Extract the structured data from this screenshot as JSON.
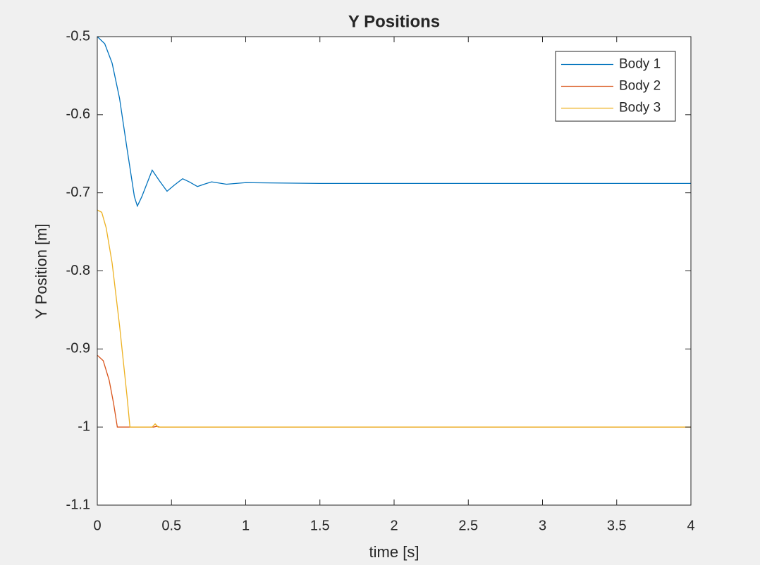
{
  "chart_data": {
    "type": "line",
    "title": "Y Positions",
    "xlabel": "time [s]",
    "ylabel": "Y Position [m]",
    "xlim": [
      0,
      4
    ],
    "xticks": [
      0,
      0.5,
      1,
      1.5,
      2,
      2.5,
      3,
      3.5,
      4
    ],
    "ylim": [
      -1.1,
      -0.5
    ],
    "yticks": [
      -1.1,
      -1,
      -0.9,
      -0.8,
      -0.7,
      -0.6,
      -0.5
    ],
    "legend_location": "northeast",
    "grid": false,
    "series": [
      {
        "name": "Body 1",
        "color": "#0072BD",
        "x": [
          0,
          0.05,
          0.1,
          0.15,
          0.2,
          0.25,
          0.27,
          0.3,
          0.37,
          0.42,
          0.47,
          0.52,
          0.575,
          0.62,
          0.675,
          0.72,
          0.77,
          0.87,
          1,
          1.5,
          4
        ],
        "values": [
          -0.5,
          -0.509,
          -0.534,
          -0.579,
          -0.643,
          -0.705,
          -0.717,
          -0.705,
          -0.671,
          -0.685,
          -0.698,
          -0.69,
          -0.682,
          -0.686,
          -0.692,
          -0.689,
          -0.686,
          -0.689,
          -0.687,
          -0.688,
          -0.688
        ]
      },
      {
        "name": "Body 2",
        "color": "#D95319",
        "x": [
          0,
          0.04,
          0.08,
          0.11,
          0.135,
          0.38,
          0.4,
          0.42,
          4
        ],
        "values": [
          -0.908,
          -0.915,
          -0.94,
          -0.97,
          -1,
          -1,
          -0.999,
          -1,
          -1
        ]
      },
      {
        "name": "Body 3",
        "color": "#EDB120",
        "x": [
          0,
          0.03,
          0.06,
          0.1,
          0.15,
          0.2,
          0.22,
          0.37,
          0.39,
          0.41,
          4
        ],
        "values": [
          -0.722,
          -0.725,
          -0.745,
          -0.79,
          -0.87,
          -0.96,
          -1,
          -1,
          -0.996,
          -1,
          -1
        ]
      }
    ]
  }
}
